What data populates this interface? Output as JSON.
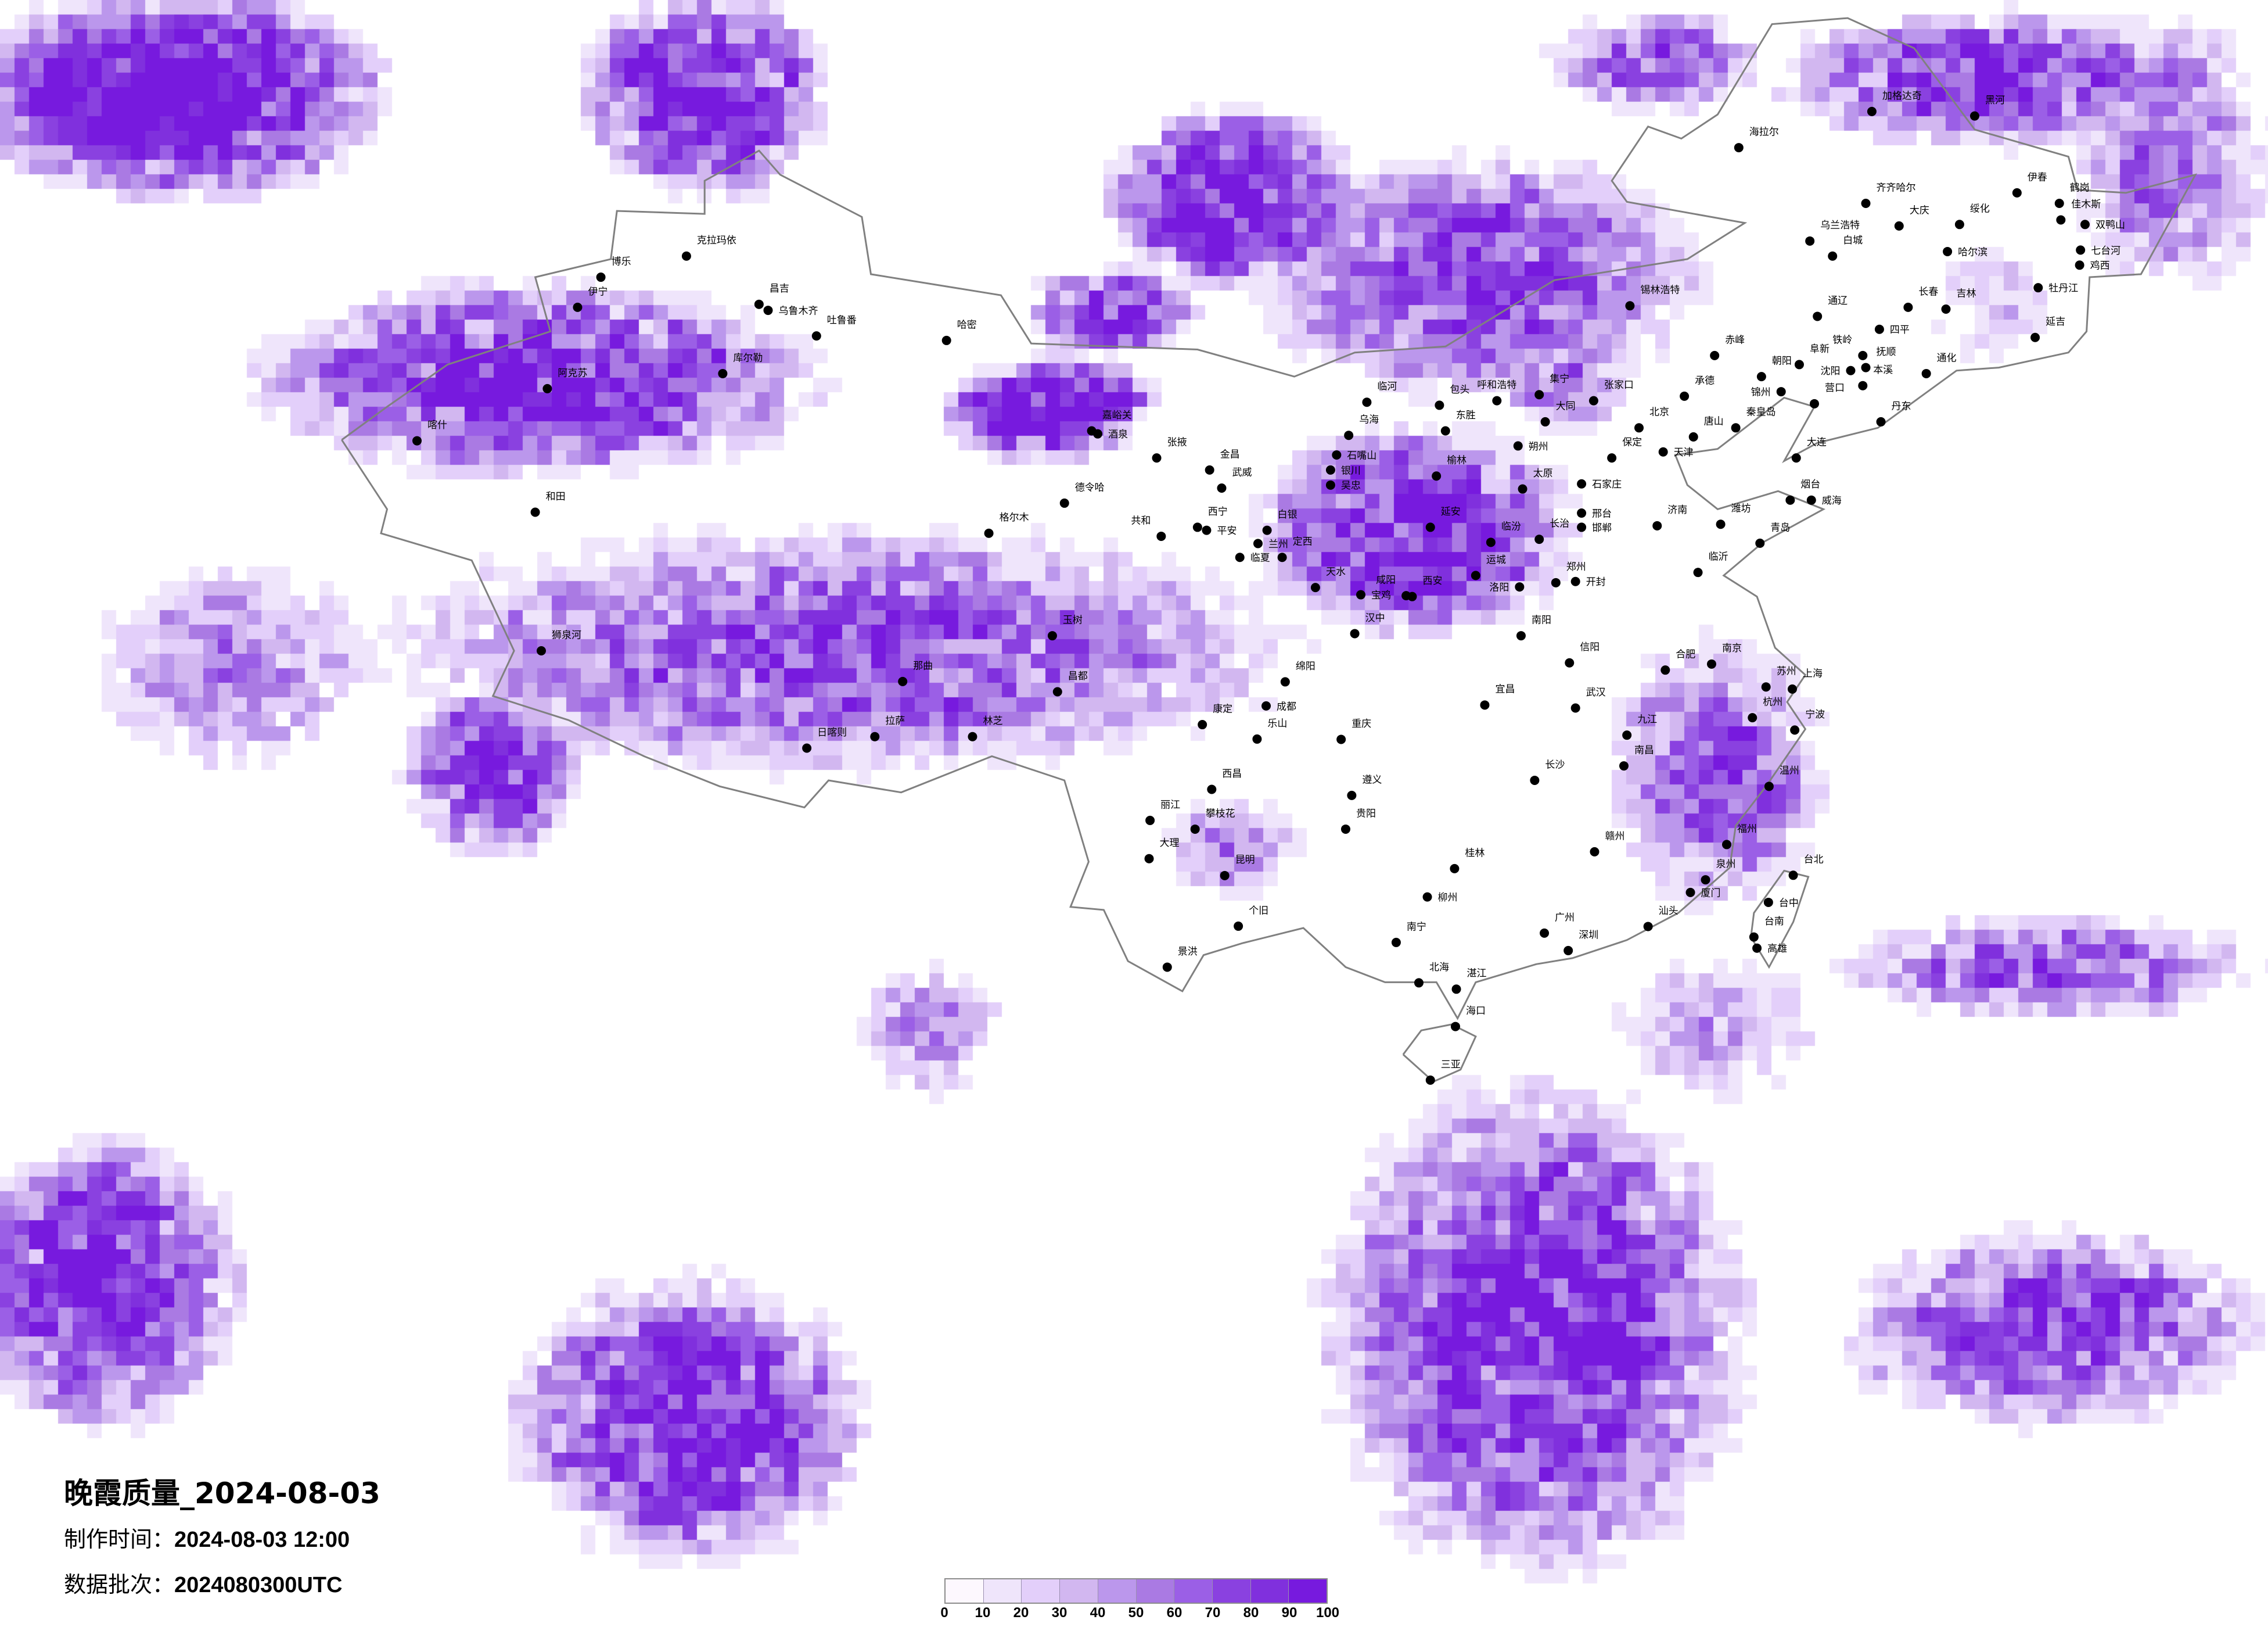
{
  "title": "晚霞质量_2024-08-03",
  "production_time": {
    "label": "制作时间：",
    "value": "2024-08-03 12:00"
  },
  "data_batch": {
    "label": "数据批次：",
    "value": "2024080300UTC"
  },
  "map_extent": {
    "lon": [
      62.2,
      137.2
    ],
    "lat": [
      0.1,
      54.1
    ]
  },
  "legend": {
    "ticks": [
      "0",
      "10",
      "20",
      "30",
      "40",
      "50",
      "60",
      "70",
      "80",
      "90",
      "100"
    ],
    "colors": [
      "#fdf8fe",
      "#efe5fb",
      "#e3cffa",
      "#d2b7f0",
      "#bb97ec",
      "#aa7ae3",
      "#9b5fe6",
      "#8a41e0",
      "#8030dd",
      "#771ade"
    ]
  },
  "colors": {
    "border": "#808080",
    "city_dot": "#000000"
  },
  "cities": [
    {
      "name": "和田",
      "lon": 79.9,
      "lat": 37.1
    },
    {
      "name": "阿克苏",
      "lon": 80.3,
      "lat": 41.2
    },
    {
      "name": "喀什",
      "lon": 75.99,
      "lat": 39.47
    },
    {
      "name": "伊宁",
      "lon": 81.3,
      "lat": 43.9
    },
    {
      "name": "博乐",
      "lon": 82.07,
      "lat": 44.9
    },
    {
      "name": "克拉玛依",
      "lon": 84.9,
      "lat": 45.6
    },
    {
      "name": "昌吉",
      "lon": 87.3,
      "lat": 44.0
    },
    {
      "name": "乌鲁木齐",
      "lon": 87.6,
      "lat": 43.8
    },
    {
      "name": "吐鲁番",
      "lon": 89.2,
      "lat": 42.95
    },
    {
      "name": "库尔勒",
      "lon": 86.1,
      "lat": 41.7
    },
    {
      "name": "哈密",
      "lon": 93.5,
      "lat": 42.8
    },
    {
      "name": "嘉峪关",
      "lon": 98.3,
      "lat": 39.8
    },
    {
      "name": "酒泉",
      "lon": 98.5,
      "lat": 39.7
    },
    {
      "name": "德令哈",
      "lon": 97.4,
      "lat": 37.4
    },
    {
      "name": "张掖",
      "lon": 100.45,
      "lat": 38.9
    },
    {
      "name": "金昌",
      "lon": 102.2,
      "lat": 38.5
    },
    {
      "name": "武威",
      "lon": 102.6,
      "lat": 37.9
    },
    {
      "name": "西宁",
      "lon": 101.8,
      "lat": 36.6
    },
    {
      "name": "平安",
      "lon": 102.1,
      "lat": 36.5
    },
    {
      "name": "共和",
      "lon": 100.6,
      "lat": 36.3
    },
    {
      "name": "兰州",
      "lon": 103.8,
      "lat": 36.06
    },
    {
      "name": "白银",
      "lon": 104.1,
      "lat": 36.5
    },
    {
      "name": "临夏",
      "lon": 103.2,
      "lat": 35.6
    },
    {
      "name": "定西",
      "lon": 104.6,
      "lat": 35.6
    },
    {
      "name": "银川",
      "lon": 106.2,
      "lat": 38.5
    },
    {
      "name": "石嘴山",
      "lon": 106.4,
      "lat": 39.0
    },
    {
      "name": "吴忠",
      "lon": 106.2,
      "lat": 38.0
    },
    {
      "name": "乌海",
      "lon": 106.8,
      "lat": 39.65
    },
    {
      "name": "临河",
      "lon": 107.4,
      "lat": 40.75
    },
    {
      "name": "包头",
      "lon": 109.8,
      "lat": 40.65
    },
    {
      "name": "呼和浩特",
      "lon": 111.7,
      "lat": 40.8
    },
    {
      "name": "集宁",
      "lon": 113.1,
      "lat": 41.0
    },
    {
      "name": "东胜",
      "lon": 110.0,
      "lat": 39.8
    },
    {
      "name": "榆林",
      "lon": 109.7,
      "lat": 38.3
    },
    {
      "name": "延安",
      "lon": 109.5,
      "lat": 36.6
    },
    {
      "name": "西安",
      "lon": 108.9,
      "lat": 34.3
    },
    {
      "name": "咸阳",
      "lon": 108.7,
      "lat": 34.33
    },
    {
      "name": "宝鸡",
      "lon": 107.2,
      "lat": 34.36
    },
    {
      "name": "天水",
      "lon": 105.7,
      "lat": 34.6
    },
    {
      "name": "汉中",
      "lon": 107.0,
      "lat": 33.07
    },
    {
      "name": "大同",
      "lon": 113.3,
      "lat": 40.1
    },
    {
      "name": "朔州",
      "lon": 112.4,
      "lat": 39.3
    },
    {
      "name": "太原",
      "lon": 112.55,
      "lat": 37.87
    },
    {
      "name": "临汾",
      "lon": 111.5,
      "lat": 36.1
    },
    {
      "name": "长治",
      "lon": 113.1,
      "lat": 36.2
    },
    {
      "name": "运城",
      "lon": 111.0,
      "lat": 35.0
    },
    {
      "name": "张家口",
      "lon": 114.9,
      "lat": 40.8
    },
    {
      "name": "北京",
      "lon": 116.4,
      "lat": 39.9
    },
    {
      "name": "天津",
      "lon": 117.2,
      "lat": 39.1
    },
    {
      "name": "保定",
      "lon": 115.5,
      "lat": 38.9
    },
    {
      "name": "石家庄",
      "lon": 114.5,
      "lat": 38.04
    },
    {
      "name": "邢台",
      "lon": 114.5,
      "lat": 37.07
    },
    {
      "name": "邯郸",
      "lon": 114.5,
      "lat": 36.6
    },
    {
      "name": "承德",
      "lon": 117.9,
      "lat": 40.95
    },
    {
      "name": "唐山",
      "lon": 118.2,
      "lat": 39.6
    },
    {
      "name": "秦皇岛",
      "lon": 119.6,
      "lat": 39.9
    },
    {
      "name": "赤峰",
      "lon": 118.9,
      "lat": 42.3
    },
    {
      "name": "锡林浩特",
      "lon": 116.1,
      "lat": 43.95
    },
    {
      "name": "通辽",
      "lon": 122.3,
      "lat": 43.6
    },
    {
      "name": "朝阳",
      "lon": 120.45,
      "lat": 41.6
    },
    {
      "name": "阜新",
      "lon": 121.7,
      "lat": 42.0
    },
    {
      "name": "锦州",
      "lon": 121.1,
      "lat": 41.1
    },
    {
      "name": "营口",
      "lon": 122.2,
      "lat": 40.7
    },
    {
      "name": "沈阳",
      "lon": 123.4,
      "lat": 41.8
    },
    {
      "name": "抚顺",
      "lon": 123.9,
      "lat": 41.9
    },
    {
      "name": "铁岭",
      "lon": 123.8,
      "lat": 42.3
    },
    {
      "name": "本溪",
      "lon": 123.8,
      "lat": 41.3
    },
    {
      "name": "丹东",
      "lon": 124.4,
      "lat": 40.1
    },
    {
      "name": "大连",
      "lon": 121.6,
      "lat": 38.9
    },
    {
      "name": "四平",
      "lon": 124.35,
      "lat": 43.17
    },
    {
      "name": "长春",
      "lon": 125.3,
      "lat": 43.9
    },
    {
      "name": "吉林",
      "lon": 126.55,
      "lat": 43.84
    },
    {
      "name": "延吉",
      "lon": 129.5,
      "lat": 42.9
    },
    {
      "name": "通化",
      "lon": 125.9,
      "lat": 41.7
    },
    {
      "name": "白城",
      "lon": 122.8,
      "lat": 45.6
    },
    {
      "name": "乌兰浩特",
      "lon": 122.05,
      "lat": 46.1
    },
    {
      "name": "齐齐哈尔",
      "lon": 123.9,
      "lat": 47.35
    },
    {
      "name": "大庆",
      "lon": 125.0,
      "lat": 46.6
    },
    {
      "name": "哈尔滨",
      "lon": 126.6,
      "lat": 45.75
    },
    {
      "name": "绥化",
      "lon": 127.0,
      "lat": 46.65
    },
    {
      "name": "伊春",
      "lon": 128.9,
      "lat": 47.7
    },
    {
      "name": "鹤岗",
      "lon": 130.3,
      "lat": 47.35
    },
    {
      "name": "佳木斯",
      "lon": 130.35,
      "lat": 46.8
    },
    {
      "name": "双鸭山",
      "lon": 131.15,
      "lat": 46.65
    },
    {
      "name": "七台河",
      "lon": 131.0,
      "lat": 45.8
    },
    {
      "name": "鸡西",
      "lon": 130.97,
      "lat": 45.3
    },
    {
      "name": "牡丹江",
      "lon": 129.6,
      "lat": 44.55
    },
    {
      "name": "海拉尔",
      "lon": 119.7,
      "lat": 49.2
    },
    {
      "name": "加格达奇",
      "lon": 124.1,
      "lat": 50.4
    },
    {
      "name": "黑河",
      "lon": 127.5,
      "lat": 50.25
    },
    {
      "name": "济南",
      "lon": 117.0,
      "lat": 36.65
    },
    {
      "name": "青岛",
      "lon": 120.4,
      "lat": 36.07
    },
    {
      "name": "烟台",
      "lon": 121.4,
      "lat": 37.5
    },
    {
      "name": "威海",
      "lon": 122.1,
      "lat": 37.5
    },
    {
      "name": "潍坊",
      "lon": 119.1,
      "lat": 36.7
    },
    {
      "name": "临沂",
      "lon": 118.35,
      "lat": 35.1
    },
    {
      "name": "郑州",
      "lon": 113.65,
      "lat": 34.76
    },
    {
      "name": "洛阳",
      "lon": 112.45,
      "lat": 34.62
    },
    {
      "name": "开封",
      "lon": 114.3,
      "lat": 34.8
    },
    {
      "name": "南阳",
      "lon": 112.5,
      "lat": 33.0
    },
    {
      "name": "信阳",
      "lon": 114.1,
      "lat": 32.1
    },
    {
      "name": "合肥",
      "lon": 117.27,
      "lat": 31.86
    },
    {
      "name": "南京",
      "lon": 118.8,
      "lat": 32.06
    },
    {
      "name": "苏州",
      "lon": 120.6,
      "lat": 31.3
    },
    {
      "name": "上海",
      "lon": 121.47,
      "lat": 31.23
    },
    {
      "name": "杭州",
      "lon": 120.15,
      "lat": 30.28
    },
    {
      "name": "宁波",
      "lon": 121.55,
      "lat": 29.87
    },
    {
      "name": "温州",
      "lon": 120.7,
      "lat": 28.0
    },
    {
      "name": "武汉",
      "lon": 114.3,
      "lat": 30.6
    },
    {
      "name": "宜昌",
      "lon": 111.3,
      "lat": 30.7
    },
    {
      "name": "长沙",
      "lon": 112.95,
      "lat": 28.2
    },
    {
      "name": "南昌",
      "lon": 115.9,
      "lat": 28.68
    },
    {
      "name": "九江",
      "lon": 116.0,
      "lat": 29.7
    },
    {
      "name": "赣州",
      "lon": 114.93,
      "lat": 25.83
    },
    {
      "name": "福州",
      "lon": 119.3,
      "lat": 26.07
    },
    {
      "name": "厦门",
      "lon": 118.1,
      "lat": 24.48
    },
    {
      "name": "泉州",
      "lon": 118.6,
      "lat": 24.9
    },
    {
      "name": "广州",
      "lon": 113.27,
      "lat": 23.13
    },
    {
      "name": "深圳",
      "lon": 114.06,
      "lat": 22.55
    },
    {
      "name": "汕头",
      "lon": 116.7,
      "lat": 23.35
    },
    {
      "name": "湛江",
      "lon": 110.36,
      "lat": 21.27
    },
    {
      "name": "海口",
      "lon": 110.33,
      "lat": 20.03
    },
    {
      "name": "三亚",
      "lon": 109.5,
      "lat": 18.25
    },
    {
      "name": "南宁",
      "lon": 108.37,
      "lat": 22.82
    },
    {
      "name": "桂林",
      "lon": 110.3,
      "lat": 25.27
    },
    {
      "name": "柳州",
      "lon": 109.4,
      "lat": 24.33
    },
    {
      "name": "北海",
      "lon": 109.12,
      "lat": 21.48
    },
    {
      "name": "贵阳",
      "lon": 106.7,
      "lat": 26.58
    },
    {
      "name": "遵义",
      "lon": 106.9,
      "lat": 27.7
    },
    {
      "name": "昆明",
      "lon": 102.7,
      "lat": 25.04
    },
    {
      "name": "大理",
      "lon": 100.2,
      "lat": 25.6
    },
    {
      "name": "丽江",
      "lon": 100.23,
      "lat": 26.87
    },
    {
      "name": "景洪",
      "lon": 100.8,
      "lat": 22.0
    },
    {
      "name": "个旧",
      "lon": 103.15,
      "lat": 23.36
    },
    {
      "name": "成都",
      "lon": 104.07,
      "lat": 30.67
    },
    {
      "name": "重庆",
      "lon": 106.55,
      "lat": 29.56
    },
    {
      "name": "绵阳",
      "lon": 104.7,
      "lat": 31.47
    },
    {
      "name": "乐山",
      "lon": 103.77,
      "lat": 29.57
    },
    {
      "name": "西昌",
      "lon": 102.27,
      "lat": 27.9
    },
    {
      "name": "攀枝花",
      "lon": 101.72,
      "lat": 26.58
    },
    {
      "name": "康定",
      "lon": 101.96,
      "lat": 30.05
    },
    {
      "name": "昌都",
      "lon": 97.17,
      "lat": 31.14
    },
    {
      "name": "玉树",
      "lon": 97.0,
      "lat": 33.0
    },
    {
      "name": "拉萨",
      "lon": 91.13,
      "lat": 29.65
    },
    {
      "name": "日喀则",
      "lon": 88.88,
      "lat": 29.27
    },
    {
      "name": "林芝",
      "lon": 94.36,
      "lat": 29.65
    },
    {
      "name": "那曲",
      "lon": 92.05,
      "lat": 31.48
    },
    {
      "name": "狮泉河",
      "lon": 80.1,
      "lat": 32.5
    },
    {
      "name": "格尔木",
      "lon": 94.9,
      "lat": 36.4
    },
    {
      "name": "台北",
      "lon": 121.5,
      "lat": 25.05
    },
    {
      "name": "台中",
      "lon": 120.68,
      "lat": 24.15
    },
    {
      "name": "台南",
      "lon": 120.2,
      "lat": 23.0
    },
    {
      "name": "高雄",
      "lon": 120.3,
      "lat": 22.63
    }
  ]
}
